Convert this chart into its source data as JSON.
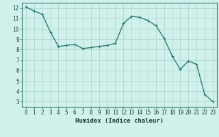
{
  "x": [
    0,
    1,
    2,
    3,
    4,
    5,
    6,
    7,
    8,
    9,
    10,
    11,
    12,
    13,
    14,
    15,
    16,
    17,
    18,
    19,
    20,
    21,
    22,
    23
  ],
  "y": [
    12.1,
    11.7,
    11.4,
    9.7,
    8.3,
    8.4,
    8.5,
    8.1,
    8.2,
    8.3,
    8.4,
    8.6,
    10.5,
    11.2,
    11.1,
    10.8,
    10.3,
    9.1,
    7.4,
    6.1,
    6.9,
    6.6,
    3.7,
    3.0
  ],
  "line_color": "#2e7d6e",
  "bg_color": "#cff0eb",
  "grid_color": "#b0d8d2",
  "xlabel": "Humidex (Indice chaleur)",
  "ylim": [
    2.5,
    12.5
  ],
  "xlim": [
    -0.5,
    23.5
  ],
  "yticks": [
    3,
    4,
    5,
    6,
    7,
    8,
    9,
    10,
    11,
    12
  ],
  "xticks": [
    0,
    1,
    2,
    3,
    4,
    5,
    6,
    7,
    8,
    9,
    10,
    11,
    12,
    13,
    14,
    15,
    16,
    17,
    18,
    19,
    20,
    21,
    22,
    23
  ],
  "tick_fontsize": 5.5,
  "label_fontsize": 6.5,
  "marker": "+",
  "markersize": 3.5,
  "linewidth": 1.0
}
